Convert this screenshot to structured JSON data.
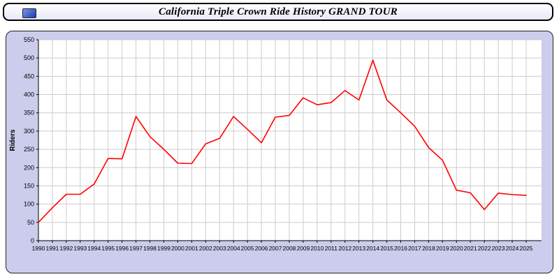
{
  "header": {
    "title": "California Triple Crown Ride History GRAND TOUR"
  },
  "chart_data": {
    "type": "line",
    "title": "California Triple Crown Ride History GRAND TOUR",
    "xlabel": "",
    "ylabel": "Riders",
    "ylim": [
      0,
      550
    ],
    "ytick_step": 50,
    "grid": true,
    "legend": "none",
    "line_color": "#ff0000",
    "grid_color": "#cccccc",
    "plot_bg": "#ffffff",
    "panel_bg": "#ccccec",
    "categories": [
      "1990",
      "1991",
      "1992",
      "1993",
      "1994",
      "1995",
      "1996",
      "1997",
      "1998",
      "1999",
      "2000",
      "2001",
      "2002",
      "2003",
      "2004",
      "2005",
      "2006",
      "2007",
      "2008",
      "2009",
      "2010",
      "2011",
      "2012",
      "2013",
      "2014",
      "2015",
      "2016",
      "2017",
      "2018",
      "2019",
      "2020",
      "2021",
      "2022",
      "2023",
      "2024",
      "2025"
    ],
    "values": [
      50,
      90,
      127,
      127,
      155,
      225,
      224,
      340,
      285,
      250,
      212,
      211,
      265,
      280,
      340,
      305,
      268,
      338,
      343,
      391,
      372,
      378,
      411,
      385,
      494,
      385,
      350,
      313,
      255,
      220,
      138,
      131,
      85,
      130,
      126,
      124
    ]
  }
}
